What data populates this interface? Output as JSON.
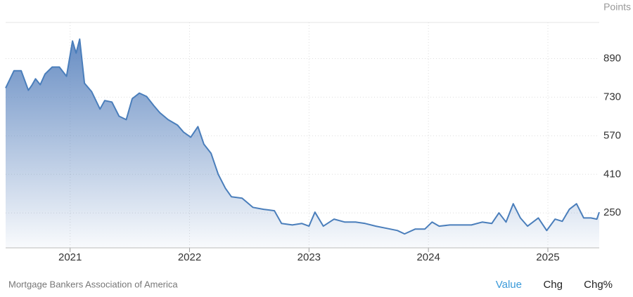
{
  "chart_data": {
    "type": "area",
    "y_label": "Points",
    "x": [
      2020.46,
      2020.53,
      2020.59,
      2020.65,
      2020.68,
      2020.71,
      2020.75,
      2020.79,
      2020.85,
      2020.91,
      2020.97,
      2021.02,
      2021.05,
      2021.08,
      2021.12,
      2021.18,
      2021.25,
      2021.29,
      2021.35,
      2021.41,
      2021.47,
      2021.52,
      2021.58,
      2021.64,
      2021.7,
      2021.75,
      2021.82,
      2021.9,
      2021.95,
      2022.01,
      2022.07,
      2022.12,
      2022.18,
      2022.24,
      2022.3,
      2022.35,
      2022.44,
      2022.53,
      2022.62,
      2022.71,
      2022.77,
      2022.86,
      2022.94,
      2023.0,
      2023.05,
      2023.12,
      2023.21,
      2023.3,
      2023.39,
      2023.47,
      2023.56,
      2023.65,
      2023.74,
      2023.8,
      2023.89,
      2023.97,
      2024.03,
      2024.09,
      2024.18,
      2024.27,
      2024.36,
      2024.45,
      2024.53,
      2024.59,
      2024.65,
      2024.71,
      2024.77,
      2024.83,
      2024.92,
      2024.99,
      2025.06,
      2025.12,
      2025.18,
      2025.24,
      2025.3,
      2025.36,
      2025.41,
      2025.43
    ],
    "values": [
      768,
      840,
      840,
      759,
      780,
      806,
      782,
      826,
      855,
      855,
      817,
      963,
      913,
      971,
      788,
      753,
      681,
      716,
      710,
      651,
      637,
      724,
      747,
      733,
      695,
      666,
      637,
      614,
      585,
      564,
      608,
      535,
      497,
      410,
      352,
      317,
      311,
      273,
      265,
      259,
      206,
      200,
      206,
      195,
      253,
      195,
      224,
      212,
      212,
      206,
      195,
      186,
      177,
      163,
      183,
      183,
      212,
      195,
      200,
      200,
      200,
      212,
      206,
      250,
      212,
      288,
      229,
      195,
      229,
      177,
      224,
      215,
      265,
      288,
      229,
      229,
      224,
      253
    ],
    "color": "#4a7ebb",
    "xlim": [
      2020.46,
      2025.43
    ],
    "xticks": [
      2021,
      2022,
      2023,
      2024,
      2025
    ],
    "ylim": [
      105,
      1040
    ],
    "yticks": [
      250,
      410,
      570,
      730,
      890
    ],
    "grid": true
  },
  "footer": {
    "source": "Mortgage Bankers Association of America",
    "controls": [
      "Value",
      "Chg",
      "Chg%"
    ]
  }
}
